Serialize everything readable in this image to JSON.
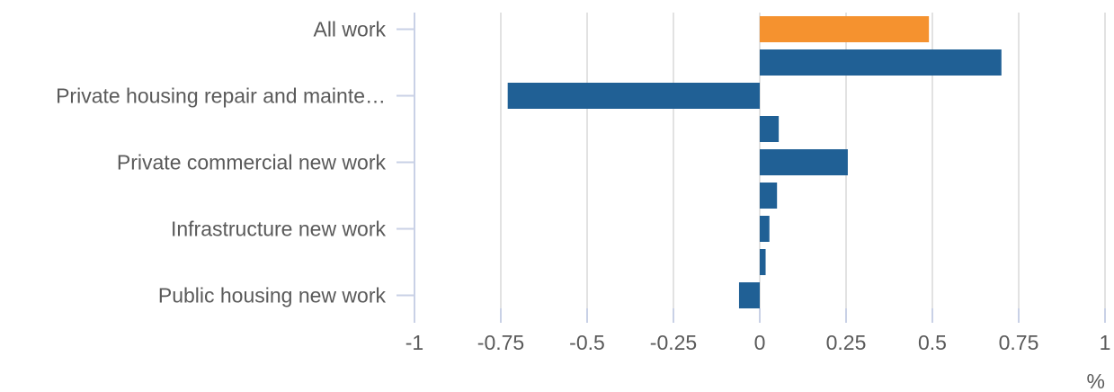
{
  "chart_data": {
    "type": "bar",
    "orientation": "horizontal",
    "xlabel": "%",
    "xlim": [
      -1,
      1
    ],
    "xticks": [
      -1,
      -0.75,
      -0.5,
      -0.25,
      0,
      0.25,
      0.5,
      0.75,
      1
    ],
    "xtick_labels": [
      "-1",
      "-0.75",
      "-0.5",
      "-0.25",
      "0",
      "0.25",
      "0.5",
      "0.75",
      "1"
    ],
    "y_tick_labels": [
      "All work",
      "Private housing repair and mainte…",
      "Private commercial new work",
      "Infrastructure new work",
      "Public housing new work"
    ],
    "bars": [
      {
        "value": 0.49,
        "color": "#f5922f"
      },
      {
        "value": 0.7,
        "color": "#206095"
      },
      {
        "value": -0.73,
        "color": "#206095"
      },
      {
        "value": 0.055,
        "color": "#206095"
      },
      {
        "value": 0.255,
        "color": "#206095"
      },
      {
        "value": 0.05,
        "color": "#206095"
      },
      {
        "value": 0.028,
        "color": "#206095"
      },
      {
        "value": 0.017,
        "color": "#206095"
      },
      {
        "value": -0.06,
        "color": "#206095"
      }
    ],
    "grid": true,
    "colors": {
      "highlight": "#f5922f",
      "series": "#206095",
      "grid": "#e2e2e2",
      "axis": "#c9d1e6",
      "text": "#5a5a5a"
    }
  }
}
